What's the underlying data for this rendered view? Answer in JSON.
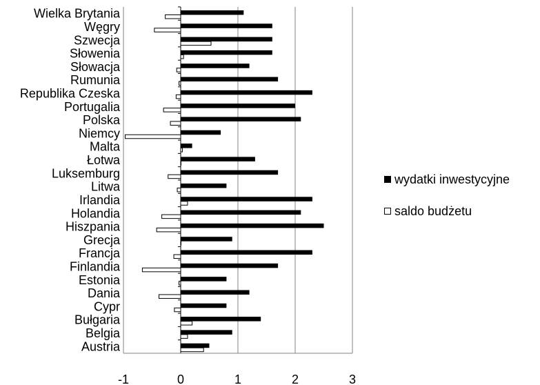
{
  "chart_data": {
    "type": "bar",
    "orientation": "horizontal",
    "title": "",
    "xlabel": "",
    "ylabel": "",
    "xlim": [
      -1,
      3
    ],
    "x_ticks": [
      "-1",
      "0",
      "1",
      "2",
      "3"
    ],
    "grid": "vertical gridlines",
    "legend_position": "right",
    "categories": [
      "Wielka Brytania",
      "Węgry",
      "Szwecja",
      "Słowenia",
      "Słowacja",
      "Rumunia",
      "Republika Czeska",
      "Portugalia",
      "Polska",
      "Niemcy",
      "Malta",
      "Łotwa",
      "Luksemburg",
      "Litwa",
      "Irlandia",
      "Holandia",
      "Hiszpania",
      "Grecja",
      "Francja",
      "Finlandia",
      "Estonia",
      "Dania",
      "Cypr",
      "Bułgaria",
      "Belgia",
      "Austria"
    ],
    "series": [
      {
        "name": "wydatki inwestycyjne",
        "color": "#000000",
        "values": [
          1.1,
          1.6,
          1.6,
          1.6,
          1.2,
          1.7,
          2.3,
          2.0,
          2.1,
          0.7,
          0.2,
          1.3,
          1.7,
          0.8,
          2.3,
          2.1,
          2.5,
          0.9,
          2.3,
          1.7,
          0.8,
          1.2,
          0.8,
          1.4,
          0.9,
          0.5
        ]
      },
      {
        "name": "saldo budżetu",
        "color": "#ffffff",
        "values": [
          -0.27,
          -0.46,
          0.53,
          0.05,
          -0.07,
          -0.03,
          -0.08,
          -0.3,
          -0.18,
          -0.97,
          0.03,
          0.0,
          -0.22,
          -0.06,
          0.12,
          -0.33,
          -0.42,
          0.0,
          -0.12,
          -0.67,
          -0.03,
          -0.38,
          -0.11,
          0.2,
          0.12,
          0.4
        ]
      }
    ]
  }
}
